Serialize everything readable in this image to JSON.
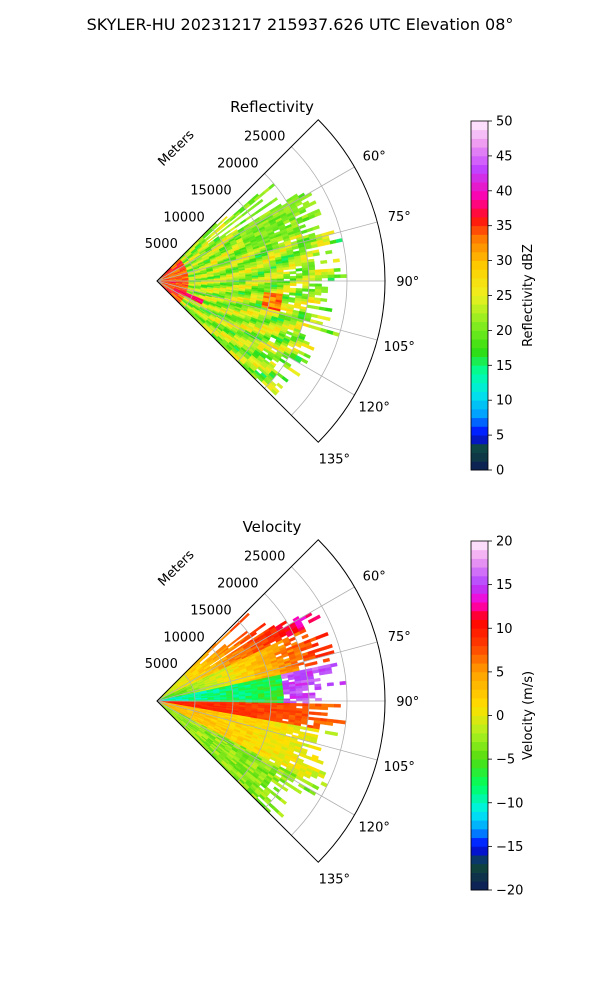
{
  "figure": {
    "title": "SKYLER-HU  20231217  215937.626 UTC Elevation 08°"
  },
  "chart_data": [
    {
      "type": "heatmap",
      "projection": "polar-sector",
      "title": "Reflectivity",
      "range_label": "Meters",
      "range_ticks": [
        5000,
        10000,
        15000,
        20000,
        25000
      ],
      "range_tick_labels": [
        "5000",
        "10000",
        "15000",
        "20000",
        "25000"
      ],
      "range_max": 30000,
      "azimuth_range_deg": [
        45,
        135
      ],
      "azimuth_ticks": [
        60,
        75,
        90,
        105,
        120,
        135
      ],
      "azimuth_tick_labels": [
        "60°",
        "75°",
        "90°",
        "105°",
        "120°",
        "135°"
      ],
      "grid": true,
      "colorbar": {
        "label": "Reflectivity dBZ",
        "range": [
          0,
          50
        ],
        "ticks": [
          0,
          5,
          10,
          15,
          20,
          25,
          30,
          35,
          40,
          45,
          50
        ],
        "tick_labels": [
          "0",
          "5",
          "10",
          "15",
          "20",
          "25",
          "30",
          "35",
          "40",
          "45",
          "50"
        ],
        "stops": [
          {
            "v": 0,
            "c": "#0d1a5a"
          },
          {
            "v": 3,
            "c": "#0f4a3a"
          },
          {
            "v": 5,
            "c": "#0000ff"
          },
          {
            "v": 8,
            "c": "#00a0ff"
          },
          {
            "v": 11,
            "c": "#00e8e8"
          },
          {
            "v": 14,
            "c": "#00ffa0"
          },
          {
            "v": 17,
            "c": "#30dd10"
          },
          {
            "v": 21,
            "c": "#88ee22"
          },
          {
            "v": 25,
            "c": "#eef020"
          },
          {
            "v": 29,
            "c": "#ffd000"
          },
          {
            "v": 33,
            "c": "#ff8000"
          },
          {
            "v": 36,
            "c": "#ff1010"
          },
          {
            "v": 39,
            "c": "#ff00aa"
          },
          {
            "v": 43,
            "c": "#c040ff"
          },
          {
            "v": 47,
            "c": "#f0a0f0"
          },
          {
            "v": 50,
            "c": "#fff0ff"
          }
        ]
      }
    },
    {
      "type": "heatmap",
      "projection": "polar-sector",
      "title": "Velocity",
      "range_label": "Meters",
      "range_ticks": [
        5000,
        10000,
        15000,
        20000,
        25000
      ],
      "range_tick_labels": [
        "5000",
        "10000",
        "15000",
        "20000",
        "25000"
      ],
      "range_max": 30000,
      "azimuth_range_deg": [
        45,
        135
      ],
      "azimuth_ticks": [
        60,
        75,
        90,
        105,
        120,
        135
      ],
      "azimuth_tick_labels": [
        "60°",
        "75°",
        "90°",
        "105°",
        "120°",
        "135°"
      ],
      "grid": true,
      "colorbar": {
        "label": "Velocity (m/s)",
        "range": [
          -20,
          20
        ],
        "ticks": [
          -20,
          -15,
          -10,
          -5,
          0,
          5,
          10,
          15,
          20
        ],
        "tick_labels": [
          "−20",
          "−15",
          "−10",
          "−5",
          "0",
          "5",
          "10",
          "15",
          "20"
        ],
        "stops": [
          {
            "v": -20,
            "c": "#0d1a5a"
          },
          {
            "v": -17,
            "c": "#0f4a3a"
          },
          {
            "v": -15,
            "c": "#0000ff"
          },
          {
            "v": -13,
            "c": "#00a0ff"
          },
          {
            "v": -11,
            "c": "#00f0f0"
          },
          {
            "v": -8,
            "c": "#00ff60"
          },
          {
            "v": -5,
            "c": "#50dd10"
          },
          {
            "v": -2,
            "c": "#b0f020"
          },
          {
            "v": 1,
            "c": "#ffe000"
          },
          {
            "v": 5,
            "c": "#ffa000"
          },
          {
            "v": 8,
            "c": "#ff4000"
          },
          {
            "v": 11,
            "c": "#ff0000"
          },
          {
            "v": 13,
            "c": "#ff00d0"
          },
          {
            "v": 15,
            "c": "#b040ff"
          },
          {
            "v": 18,
            "c": "#f0a0f0"
          },
          {
            "v": 20,
            "c": "#fff0ff"
          }
        ]
      }
    }
  ]
}
